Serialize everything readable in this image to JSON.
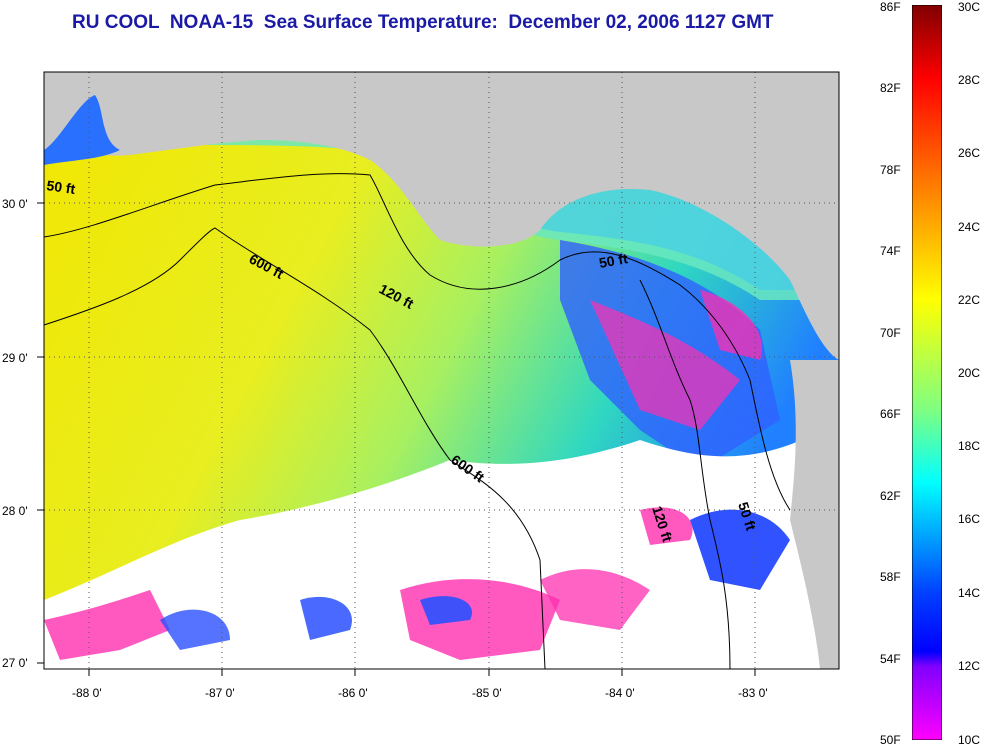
{
  "title": "RU COOL  NOAA-15  Sea Surface Temperature:  December 02, 2006 1127 GMT",
  "map": {
    "lon_ticks": [
      "-88 0'",
      "-87 0'",
      "-86 0'",
      "-85 0'",
      "-84 0'",
      "-83 0'"
    ],
    "lat_ticks": [
      "30 0'",
      "29 0'",
      "28 0'",
      "27 0'"
    ],
    "contour_labels": [
      "50 ft",
      "600 ft",
      "120 ft",
      "50 ft",
      "600 ft",
      "120 ft",
      "50 ft"
    ],
    "colors": {
      "land": "#c8c8c8",
      "cloud": "#ffffff",
      "warm": "#f2e600",
      "mid": "#3fe0a0",
      "cool": "#1a4cff",
      "cold": "#ff2fb0"
    }
  },
  "colorbar": {
    "fahrenheit_labels": [
      "86F",
      "82F",
      "78F",
      "74F",
      "70F",
      "66F",
      "62F",
      "58F",
      "54F",
      "50F"
    ],
    "celsius_labels": [
      "30C",
      "28C",
      "26C",
      "24C",
      "22C",
      "20C",
      "18C",
      "16C",
      "14C",
      "12C",
      "10C"
    ]
  }
}
